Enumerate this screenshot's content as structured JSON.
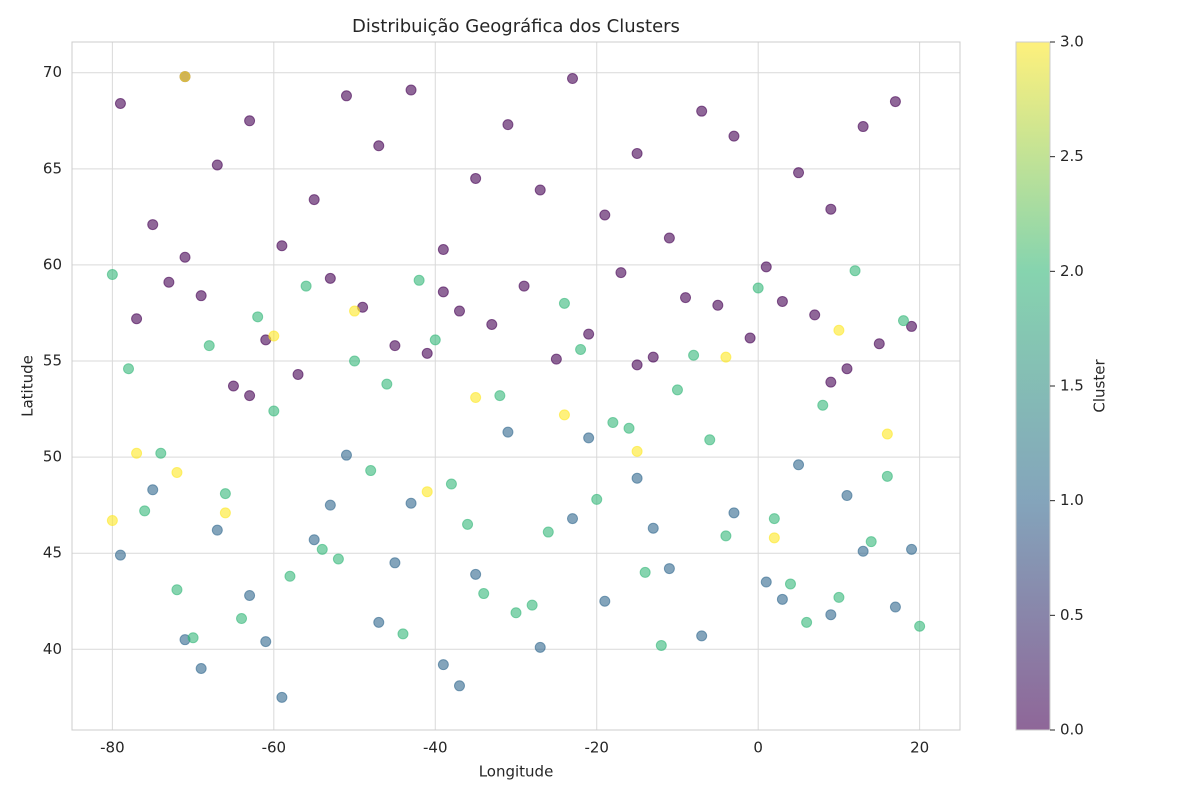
{
  "chart_data": {
    "type": "scatter",
    "title": "Distribuição Geográfica dos Clusters",
    "x_label": "Longitude",
    "y_label": "Latitude",
    "colorbar_label": "Cluster",
    "xlim": [
      -85,
      25
    ],
    "ylim": [
      35.8,
      71.6
    ],
    "xticks": [
      -80,
      -60,
      -40,
      -20,
      0,
      20
    ],
    "yticks": [
      40,
      45,
      50,
      55,
      60,
      65,
      70
    ],
    "clim": [
      0,
      3
    ],
    "cticks": [
      {
        "value": 0,
        "label": "0.0"
      },
      0.5,
      {
        "value": 1,
        "label": "1.0"
      },
      1.5,
      {
        "value": 2,
        "label": "2.0"
      },
      2.5,
      {
        "value": 3,
        "label": "3.0"
      }
    ],
    "colormap": [
      "#440154",
      "#31688e",
      "#35b779",
      "#fde725"
    ],
    "opacity": 0.6,
    "grid": true,
    "series": [
      {
        "cluster": 0,
        "x": [
          -79,
          -75,
          -71,
          -67,
          -63,
          -59,
          -55,
          -51,
          -47,
          -43,
          -39,
          -35,
          -31,
          -27,
          -23,
          -19,
          -15,
          -11,
          -7,
          -3,
          1,
          5,
          9,
          13,
          17,
          -77,
          -69,
          -61,
          -53,
          -45,
          -37,
          -29,
          -21,
          -13,
          -5,
          3,
          11,
          19,
          -65,
          -41,
          -73,
          -57,
          -49,
          -33,
          -25,
          -17,
          -9,
          -1,
          7,
          15,
          -63,
          -39,
          -15,
          9,
          -71
        ],
        "y": [
          68.4,
          62.1,
          69.8,
          65.2,
          67.5,
          61.0,
          63.4,
          68.8,
          66.2,
          69.1,
          60.8,
          64.5,
          67.3,
          63.9,
          69.7,
          62.6,
          65.8,
          61.4,
          68.0,
          66.7,
          59.9,
          64.8,
          62.9,
          67.2,
          68.5,
          57.2,
          58.4,
          56.1,
          59.3,
          55.8,
          57.6,
          58.9,
          56.4,
          55.2,
          57.9,
          58.1,
          54.6,
          56.8,
          53.7,
          55.4,
          59.1,
          54.3,
          57.8,
          56.9,
          55.1,
          59.6,
          58.3,
          56.2,
          57.4,
          55.9,
          53.2,
          58.6,
          54.8,
          53.9,
          60.4
        ]
      },
      {
        "cluster": 1,
        "x": [
          -79,
          -75,
          -71,
          -67,
          -63,
          -59,
          -55,
          -51,
          -47,
          -43,
          -39,
          -35,
          -31,
          -27,
          -23,
          -19,
          -15,
          -11,
          -7,
          -3,
          1,
          5,
          9,
          13,
          17,
          -61,
          -37,
          -13,
          11,
          -69,
          -45,
          -21,
          3,
          19,
          -53
        ],
        "y": [
          44.9,
          48.3,
          40.5,
          46.2,
          42.8,
          37.5,
          45.7,
          50.1,
          41.4,
          47.6,
          39.2,
          43.9,
          51.3,
          40.1,
          46.8,
          42.5,
          48.9,
          44.2,
          40.7,
          47.1,
          43.5,
          49.6,
          41.8,
          45.1,
          42.2,
          40.4,
          38.1,
          46.3,
          48.0,
          39.0,
          44.5,
          51.0,
          42.6,
          45.2,
          47.5
        ]
      },
      {
        "cluster": 2,
        "x": [
          -80,
          -76,
          -72,
          -68,
          -64,
          -60,
          -56,
          -52,
          -48,
          -44,
          -40,
          -36,
          -32,
          -28,
          -24,
          -20,
          -16,
          -12,
          -8,
          -4,
          0,
          4,
          8,
          12,
          16,
          20,
          -78,
          -70,
          -62,
          -54,
          -46,
          -38,
          -30,
          -22,
          -14,
          -6,
          2,
          10,
          18,
          -74,
          -58,
          -42,
          -26,
          -10,
          6,
          -66,
          -50,
          -34,
          -18,
          14
        ],
        "y": [
          59.5,
          47.2,
          43.1,
          55.8,
          41.6,
          52.4,
          58.9,
          44.7,
          49.3,
          40.8,
          56.1,
          46.5,
          53.2,
          42.3,
          58.0,
          47.8,
          51.5,
          40.2,
          55.3,
          45.9,
          58.8,
          43.4,
          52.7,
          59.7,
          49.0,
          41.2,
          54.6,
          40.6,
          57.3,
          45.2,
          53.8,
          48.6,
          41.9,
          55.6,
          44.0,
          50.9,
          46.8,
          42.7,
          57.1,
          50.2,
          43.8,
          59.2,
          46.1,
          53.5,
          41.4,
          48.1,
          55.0,
          42.9,
          51.8,
          45.6
        ]
      },
      {
        "cluster": 3,
        "x": [
          -80,
          -72,
          -66,
          -60,
          -50,
          -41,
          -35,
          -24,
          -15,
          -4,
          2,
          10,
          16,
          -77,
          -71
        ],
        "y": [
          46.7,
          49.2,
          47.1,
          56.3,
          57.6,
          48.2,
          53.1,
          52.2,
          50.3,
          55.2,
          45.8,
          56.6,
          51.2,
          50.2,
          69.8
        ]
      }
    ]
  }
}
